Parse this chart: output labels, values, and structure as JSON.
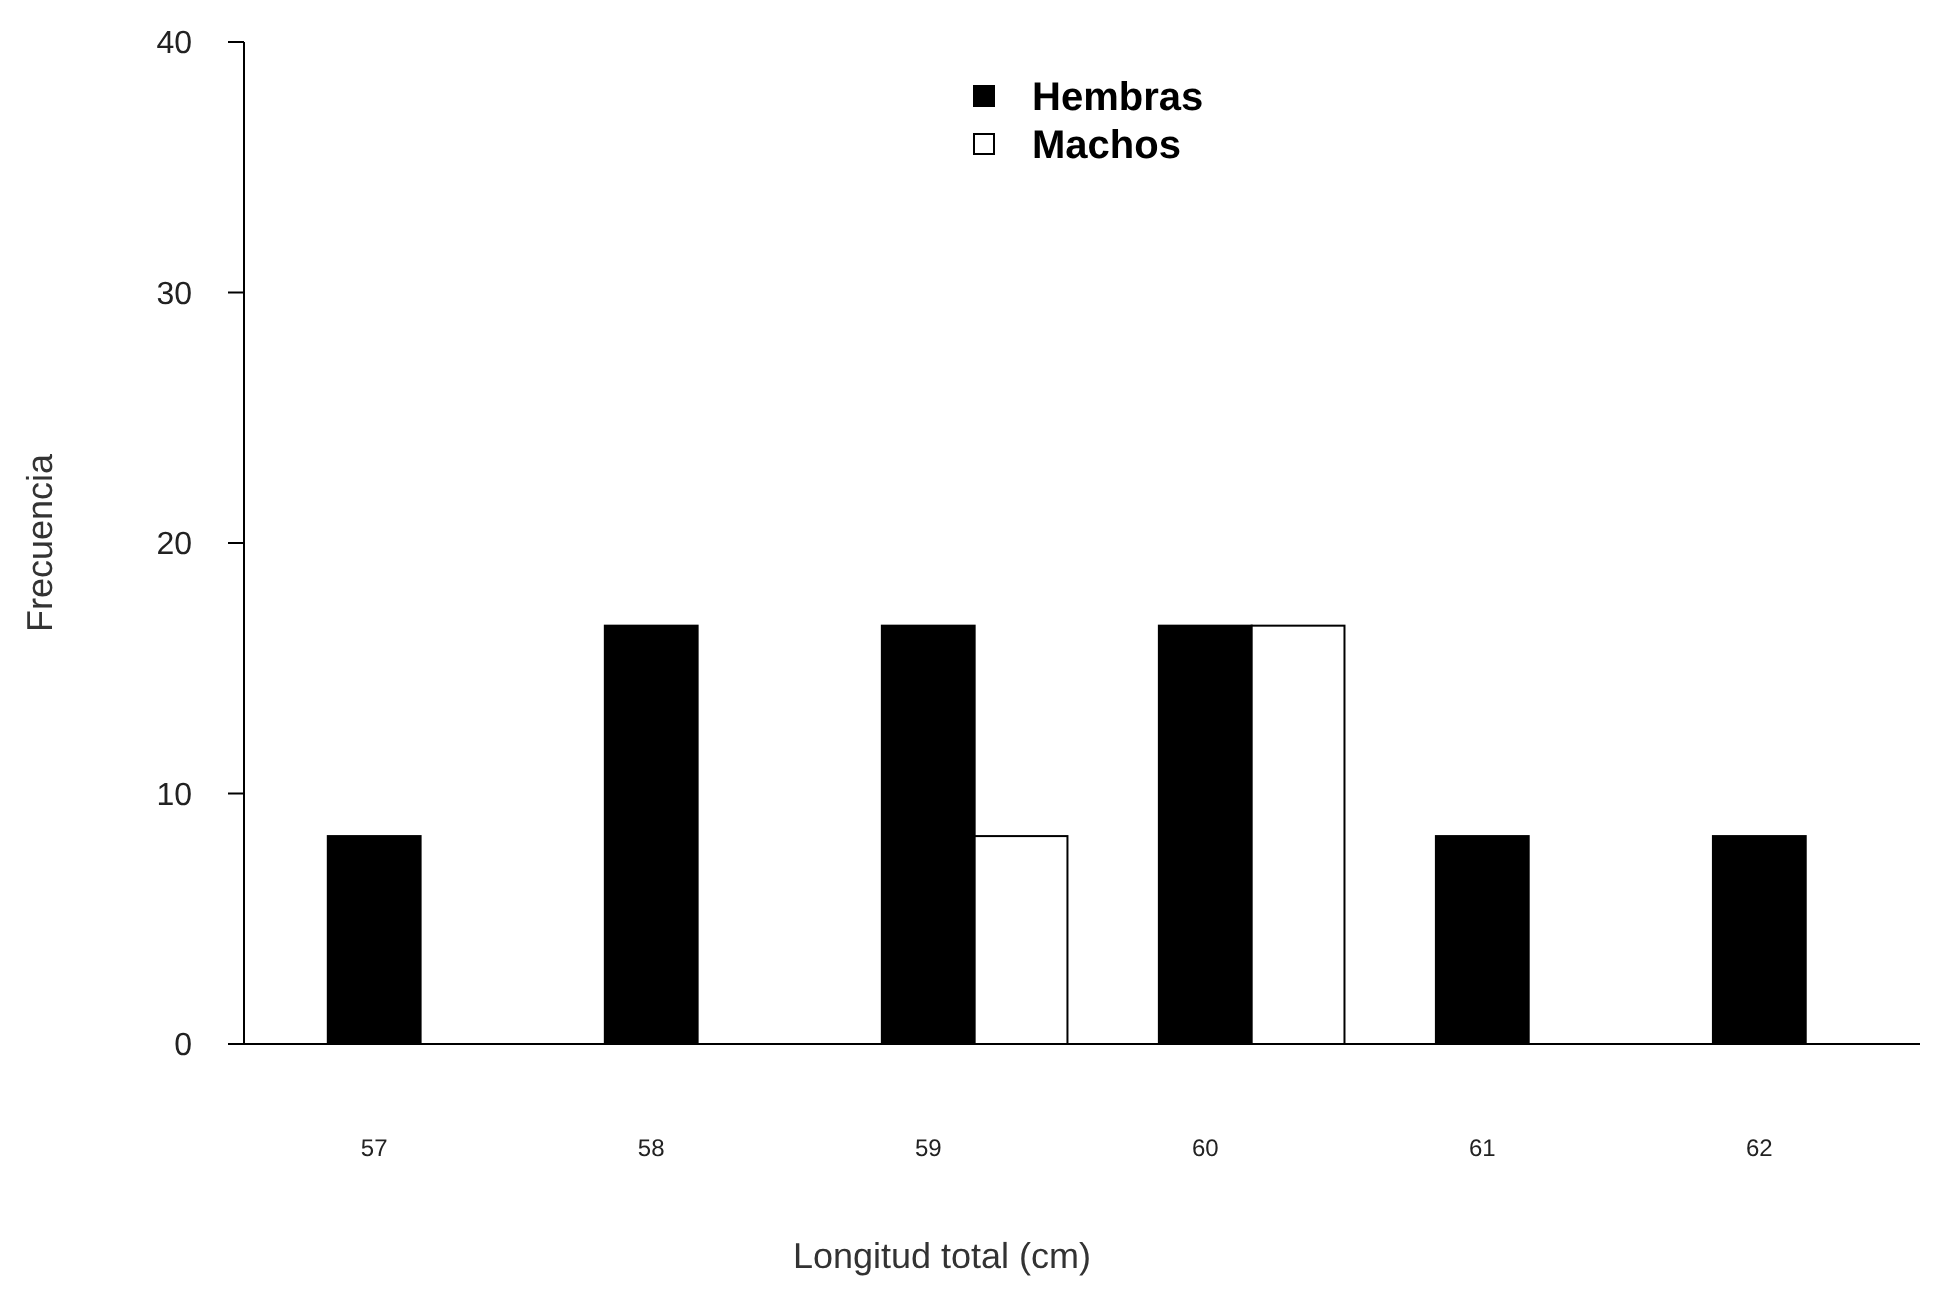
{
  "chart_data": {
    "type": "bar",
    "xlabel": "Longitud total (cm)",
    "ylabel": "Frecuencia",
    "categories": [
      "57",
      "58",
      "59",
      "60",
      "61",
      "62"
    ],
    "series": [
      {
        "name": "Hembras",
        "color": "#000000",
        "values": [
          8.3,
          16.7,
          16.7,
          16.7,
          8.3,
          8.3
        ]
      },
      {
        "name": "Machos",
        "color": "#ffffff",
        "values": [
          0,
          0,
          8.3,
          16.7,
          0,
          0
        ]
      }
    ],
    "ylim": [
      0,
      40
    ],
    "yticks": [
      0,
      10,
      20,
      30,
      40
    ],
    "grid": false,
    "legend": "top"
  }
}
